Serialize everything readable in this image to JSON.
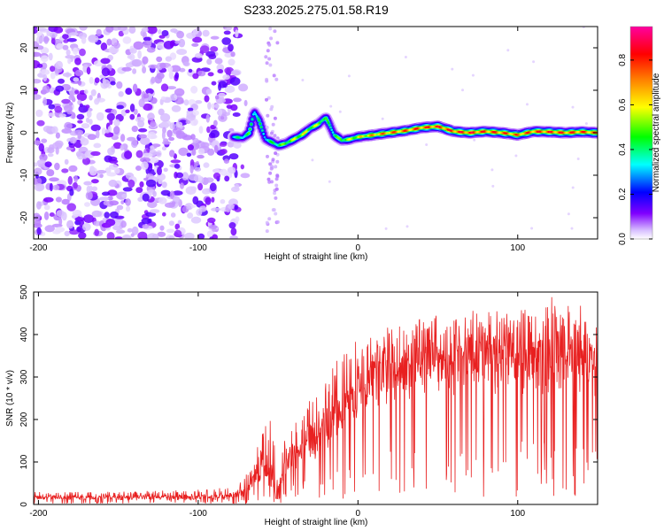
{
  "chart_data": [
    {
      "type": "heatmap",
      "title": "S233.2025.275.01.58.R19",
      "xlabel": "Height of straight line (km)",
      "ylabel": "Frequency (Hz)",
      "xlim": [
        -203,
        150
      ],
      "ylim": [
        -25,
        25
      ],
      "xticks": [
        -200,
        -100,
        0,
        100
      ],
      "yticks": [
        -20,
        -10,
        0,
        10,
        20
      ],
      "colorbar": {
        "label": "Normalized spectral amplitude",
        "range": [
          0.0,
          0.95
        ],
        "ticks": [
          0.0,
          0.2,
          0.4,
          0.6,
          0.8
        ],
        "colors": [
          "#ffffff",
          "#d8c0ff",
          "#8000ff",
          "#0000ff",
          "#00ffff",
          "#00ff00",
          "#ffff00",
          "#ff8000",
          "#ff0000",
          "#ff00a0"
        ]
      },
      "frequency_track": {
        "height_km": [
          -78,
          -72,
          -68,
          -65,
          -62,
          -58,
          -55,
          -50,
          -45,
          -40,
          -35,
          -30,
          -25,
          -22,
          -20,
          -18,
          -15,
          -10,
          -5,
          0,
          10,
          20,
          30,
          40,
          50,
          60,
          70,
          80,
          90,
          100,
          110,
          120,
          130,
          140,
          150
        ],
        "frequency_hz": [
          -1,
          -1.2,
          0,
          5,
          3,
          -1.5,
          -2,
          -3,
          -2.5,
          -1.5,
          -0.5,
          1,
          2,
          3,
          3.5,
          2,
          -0.5,
          -1.8,
          -1.5,
          -1,
          -0.5,
          0,
          0.5,
          1.2,
          1.5,
          0.3,
          0,
          0.3,
          0,
          -0.5,
          0.3,
          0.2,
          0,
          0.2,
          0
        ],
        "peak_amplitude": [
          0.4,
          0.45,
          0.5,
          0.45,
          0.45,
          0.4,
          0.45,
          0.5,
          0.55,
          0.6,
          0.65,
          0.6,
          0.6,
          0.55,
          0.5,
          0.45,
          0.5,
          0.55,
          0.6,
          0.65,
          0.75,
          0.8,
          0.82,
          0.85,
          0.88,
          0.88,
          0.9,
          0.85,
          0.85,
          0.8,
          0.85,
          0.88,
          0.85,
          0.85,
          0.8
        ]
      },
      "noise_region": {
        "x_range": [
          -203,
          -75
        ],
        "description": "scattered low amplitude noise"
      }
    },
    {
      "type": "line",
      "xlabel": "Height of straight line (km)",
      "ylabel": "SNR (10 * v/v)",
      "xlim": [
        -203,
        150
      ],
      "ylim": [
        0,
        500
      ],
      "xticks": [
        -200,
        -100,
        0,
        100
      ],
      "yticks": [
        0,
        100,
        200,
        300,
        400,
        500
      ],
      "color": "#e82020",
      "snr_envelope": {
        "height_km": [
          -203,
          -150,
          -100,
          -80,
          -70,
          -65,
          -60,
          -55,
          -50,
          -45,
          -40,
          -30,
          -20,
          -10,
          0,
          20,
          40,
          60,
          80,
          100,
          120,
          150
        ],
        "median": [
          15,
          15,
          15,
          18,
          30,
          50,
          100,
          60,
          20,
          90,
          100,
          140,
          170,
          200,
          250,
          300,
          320,
          330,
          340,
          340,
          330,
          330
        ],
        "max": [
          30,
          30,
          35,
          40,
          70,
          110,
          190,
          200,
          100,
          170,
          190,
          260,
          320,
          350,
          390,
          420,
          440,
          450,
          460,
          460,
          500,
          450
        ]
      }
    }
  ]
}
